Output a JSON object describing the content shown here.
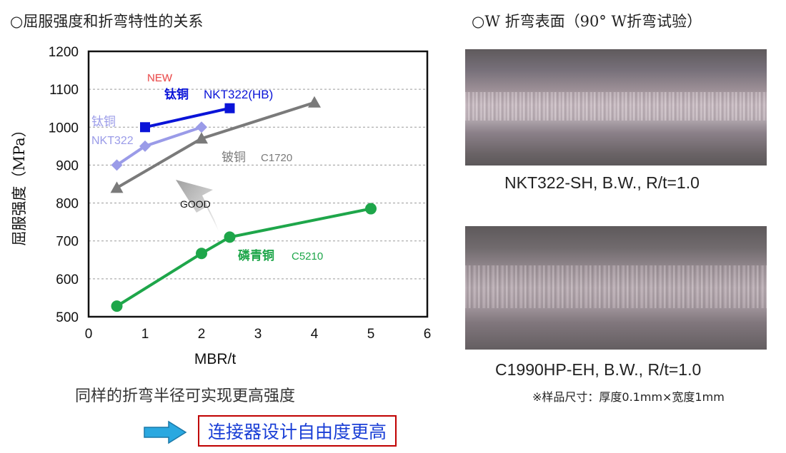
{
  "left": {
    "title": "○屈服强度和折弯特性的关系",
    "conclusion": "同样的折弯半径可实现更高强度",
    "boxed_text": "连接器设计自由度更高"
  },
  "right": {
    "title": "○W 折弯表面（90° W折弯试验）",
    "caption1": "NKT322-SH, B.W., R/t=1.0",
    "caption2": "C1990HP-EH, B.W., R/t=1.0",
    "note": "※样品尺寸：厚度0.1mm×宽度1mm"
  },
  "colors": {
    "arrow": "#2aa8e0",
    "box_border": "#c00000",
    "box_text": "#1a3fd6"
  },
  "chart_data": {
    "type": "line",
    "xlabel": "MBR/t",
    "ylabel": "屈服强度（MPa）",
    "xlim": [
      0,
      6
    ],
    "ylim": [
      500,
      1200
    ],
    "xticks": [
      0,
      1,
      2,
      3,
      4,
      5,
      6
    ],
    "yticks": [
      500,
      600,
      700,
      800,
      900,
      1000,
      1100,
      1200
    ],
    "grid": "horizontal dashed",
    "series": [
      {
        "name": "钛铜 NKT322(HB)",
        "label_lines": [
          "钛铜",
          "NKT322(HB)"
        ],
        "badge": "NEW",
        "marker": "square",
        "color": "#0a14d8",
        "x": [
          1,
          2.5
        ],
        "y": [
          1000,
          1050
        ]
      },
      {
        "name": "钛铜 NKT322",
        "label_lines": [
          "钛铜",
          "NKT322"
        ],
        "marker": "diamond",
        "color": "#9a9be8",
        "x": [
          0.5,
          1,
          2
        ],
        "y": [
          900,
          950,
          1000
        ]
      },
      {
        "name": "铍铜 C1720",
        "label_lines": [
          "铍铜",
          "C1720"
        ],
        "marker": "triangle",
        "color": "#7a7a7a",
        "x": [
          0.5,
          2,
          4
        ],
        "y": [
          840,
          970,
          1065
        ]
      },
      {
        "name": "磷青铜 C5210",
        "label_lines": [
          "磷青铜",
          "C5210"
        ],
        "marker": "circle",
        "color": "#1ea64a",
        "x": [
          0.5,
          2,
          2.5,
          5
        ],
        "y": [
          528,
          667,
          710,
          785
        ]
      }
    ],
    "annotation": "GOOD"
  }
}
